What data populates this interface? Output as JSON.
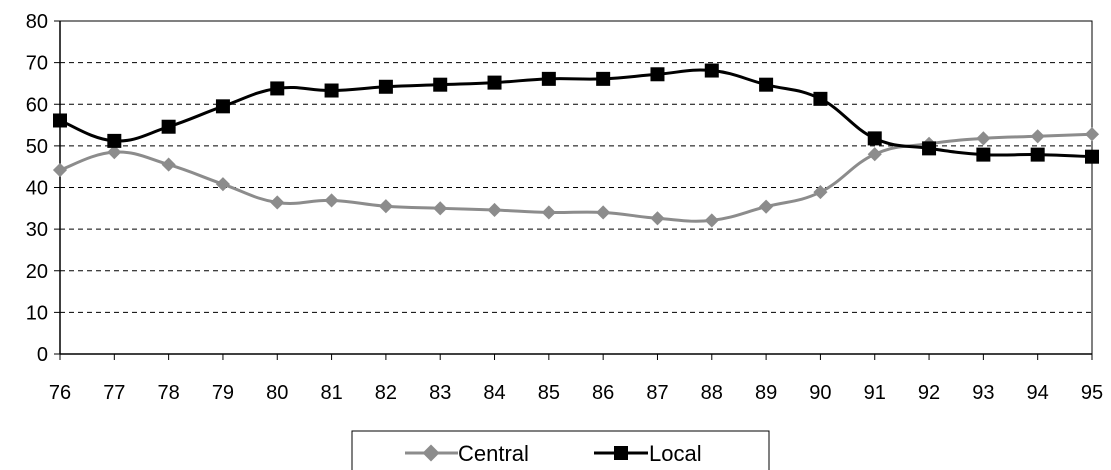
{
  "chart_data": {
    "type": "line",
    "x": [
      "76",
      "77",
      "78",
      "79",
      "80",
      "81",
      "82",
      "83",
      "84",
      "85",
      "86",
      "87",
      "88",
      "89",
      "90",
      "91",
      "92",
      "93",
      "94",
      "95"
    ],
    "ylim": [
      0,
      80
    ],
    "yticks": [
      "0",
      "10",
      "20",
      "30",
      "40",
      "50",
      "60",
      "70",
      "80"
    ],
    "grid": "horizontal-dashed",
    "legend_position": "bottom",
    "series": [
      {
        "name": "Central",
        "color": "#8c8c8c",
        "marker": "diamond",
        "values": [
          44.2,
          48.5,
          45.5,
          40.8,
          36.4,
          36.9,
          35.5,
          35.0,
          34.6,
          34.0,
          34.0,
          32.6,
          32.1,
          35.4,
          38.9,
          48.0,
          50.5,
          51.8,
          52.3,
          52.8
        ]
      },
      {
        "name": "Local",
        "color": "#000000",
        "marker": "square",
        "values": [
          56.1,
          51.2,
          54.6,
          59.5,
          63.8,
          63.3,
          64.2,
          64.7,
          65.2,
          66.1,
          66.1,
          67.2,
          68.1,
          64.7,
          61.3,
          51.8,
          49.4,
          47.9,
          47.9,
          47.4
        ]
      }
    ]
  }
}
